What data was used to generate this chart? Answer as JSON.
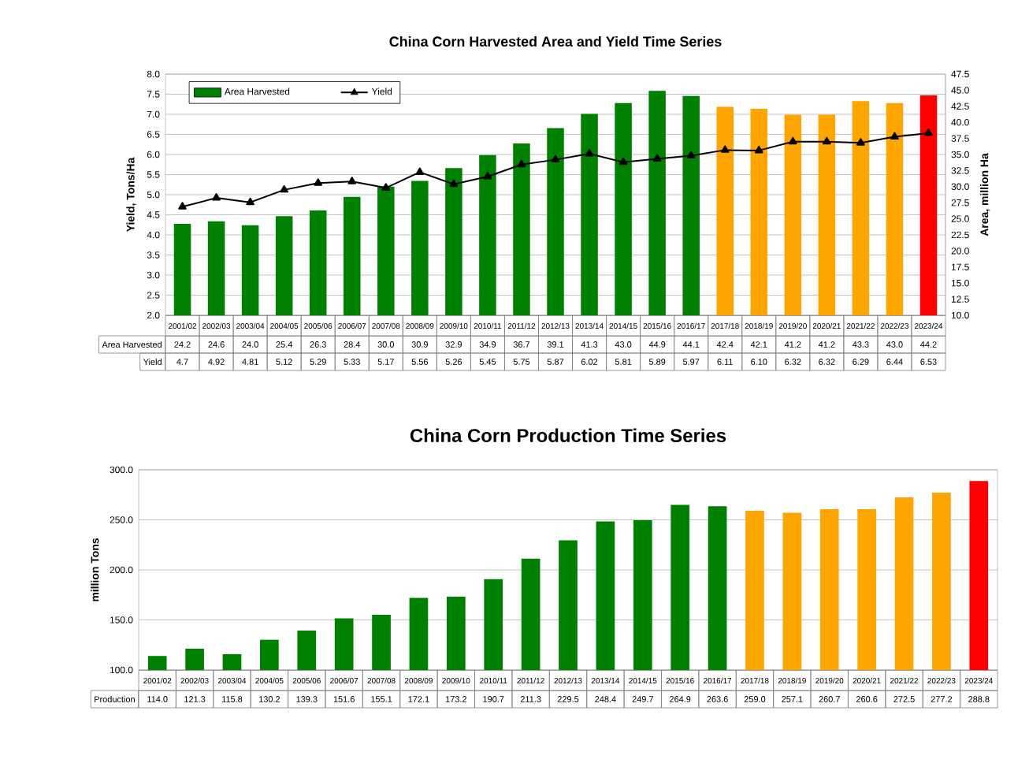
{
  "chart_data": [
    {
      "type": "bar",
      "title": "China Corn Harvested Area and Yield Time Series",
      "ylabel": "Yield, Tons/Ha",
      "y2label": "Area, million  Ha",
      "categories": [
        "2001/02",
        "2002/03",
        "2003/04",
        "2004/05",
        "2005/06",
        "2006/07",
        "2007/08",
        "2008/09",
        "2009/10",
        "2010/11",
        "2011/12",
        "2012/13",
        "2013/14",
        "2014/15",
        "2015/16",
        "2016/17",
        "2017/18",
        "2018/19",
        "2019/20",
        "2020/21",
        "2021/22",
        "2022/23",
        "2023/24"
      ],
      "series": [
        {
          "name": "Area Harvested",
          "type": "bar",
          "axis": "y2",
          "color": "#008000",
          "colors": [
            "#008000",
            "#008000",
            "#008000",
            "#008000",
            "#008000",
            "#008000",
            "#008000",
            "#008000",
            "#008000",
            "#008000",
            "#008000",
            "#008000",
            "#008000",
            "#008000",
            "#008000",
            "#008000",
            "#ffa500",
            "#ffa500",
            "#ffa500",
            "#ffa500",
            "#ffa500",
            "#ffa500",
            "#ff0000"
          ],
          "values": [
            24.2,
            24.6,
            24.0,
            25.4,
            26.3,
            28.4,
            30.0,
            30.9,
            32.9,
            34.9,
            36.7,
            39.1,
            41.3,
            43.0,
            44.9,
            44.1,
            42.4,
            42.1,
            41.2,
            41.2,
            43.3,
            43.0,
            44.2
          ],
          "value_labels": [
            "24.2",
            "24.6",
            "24.0",
            "25.4",
            "26.3",
            "28.4",
            "30.0",
            "30.9",
            "32.9",
            "34.9",
            "36.7",
            "39.1",
            "41.3",
            "43.0",
            "44.9",
            "44.1",
            "42.4",
            "42.1",
            "41.2",
            "41.2",
            "43.3",
            "43.0",
            "44.2"
          ]
        },
        {
          "name": "Yield",
          "type": "line",
          "color": "#000000",
          "values": [
            4.7,
            4.92,
            4.81,
            5.12,
            5.29,
            5.33,
            5.17,
            5.56,
            5.26,
            5.45,
            5.75,
            5.87,
            6.02,
            5.81,
            5.89,
            5.97,
            6.11,
            6.1,
            6.32,
            6.32,
            6.29,
            6.44,
            6.53
          ],
          "value_labels": [
            "4.7",
            "4.92",
            "4.81",
            "5.12",
            "5.29",
            "5.33",
            "5.17",
            "5.56",
            "5.26",
            "5.45",
            "5.75",
            "5.87",
            "6.02",
            "5.81",
            "5.89",
            "5.97",
            "6.11",
            "6.10",
            "6.32",
            "6.32",
            "6.29",
            "6.44",
            "6.53"
          ]
        }
      ],
      "ylim": [
        2,
        8
      ],
      "yticks": [
        {
          "value": 2,
          "label": "2.0"
        },
        2.5,
        {
          "value": 3,
          "label": "3.0"
        },
        3.5,
        {
          "value": 4,
          "label": "4.0"
        },
        4.5,
        {
          "value": 5,
          "label": "5.0"
        },
        5.5,
        {
          "value": 6,
          "label": "6.0"
        },
        6.5,
        {
          "value": 7,
          "label": "7.0"
        },
        7.5,
        {
          "value": 8,
          "label": "8.0"
        }
      ],
      "y2lim": [
        10,
        47.5
      ],
      "y2ticks": [
        {
          "value": 10,
          "label": "10.0"
        },
        12.5,
        {
          "value": 15,
          "label": "15.0"
        },
        17.5,
        {
          "value": 20,
          "label": "20.0"
        },
        22.5,
        {
          "value": 25,
          "label": "25.0"
        },
        27.5,
        {
          "value": 30,
          "label": "30.0"
        },
        32.5,
        {
          "value": 35,
          "label": "35.0"
        },
        37.5,
        {
          "value": 40,
          "label": "40.0"
        },
        42.5,
        {
          "value": 45,
          "label": "45.0"
        },
        47.5
      ],
      "grid": "y",
      "legend": "top left",
      "marker": "triangle"
    },
    {
      "type": "bar",
      "title": "China Corn Production Time Series",
      "ylabel": "million  Tons",
      "categories": [
        "2001/02",
        "2002/03",
        "2003/04",
        "2004/05",
        "2005/06",
        "2006/07",
        "2007/08",
        "2008/09",
        "2009/10",
        "2010/11",
        "2011/12",
        "2012/13",
        "2013/14",
        "2014/15",
        "2015/16",
        "2016/17",
        "2017/18",
        "2018/19",
        "2019/20",
        "2020/21",
        "2021/22",
        "2022/23",
        "2023/24"
      ],
      "series": [
        {
          "name": "Production",
          "colors": [
            "#008000",
            "#008000",
            "#008000",
            "#008000",
            "#008000",
            "#008000",
            "#008000",
            "#008000",
            "#008000",
            "#008000",
            "#008000",
            "#008000",
            "#008000",
            "#008000",
            "#008000",
            "#008000",
            "#ffa500",
            "#ffa500",
            "#ffa500",
            "#ffa500",
            "#ffa500",
            "#ffa500",
            "#ff0000"
          ],
          "values": [
            114.0,
            121.3,
            115.8,
            130.2,
            139.3,
            151.6,
            155.1,
            172.1,
            173.2,
            190.7,
            211.3,
            229.5,
            248.4,
            249.7,
            264.9,
            263.6,
            259.0,
            257.1,
            260.7,
            260.6,
            272.5,
            277.2,
            288.8
          ],
          "value_labels": [
            "114.0",
            "121.3",
            "115.8",
            "130.2",
            "139.3",
            "151.6",
            "155.1",
            "172.1",
            "173.2",
            "190.7",
            "211.3",
            "229.5",
            "248.4",
            "249.7",
            "264.9",
            "263.6",
            "259.0",
            "257.1",
            "260.7",
            "260.6",
            "272.5",
            "277.2",
            "288.8"
          ]
        }
      ],
      "ylim": [
        100,
        300
      ],
      "yticks": [
        {
          "value": 100,
          "label": "100.0"
        },
        {
          "value": 150,
          "label": "150.0"
        },
        {
          "value": 200,
          "label": "200.0"
        },
        {
          "value": 250,
          "label": "250.0"
        },
        {
          "value": 300,
          "label": "300.0"
        }
      ],
      "grid": "y",
      "legend": false
    }
  ]
}
